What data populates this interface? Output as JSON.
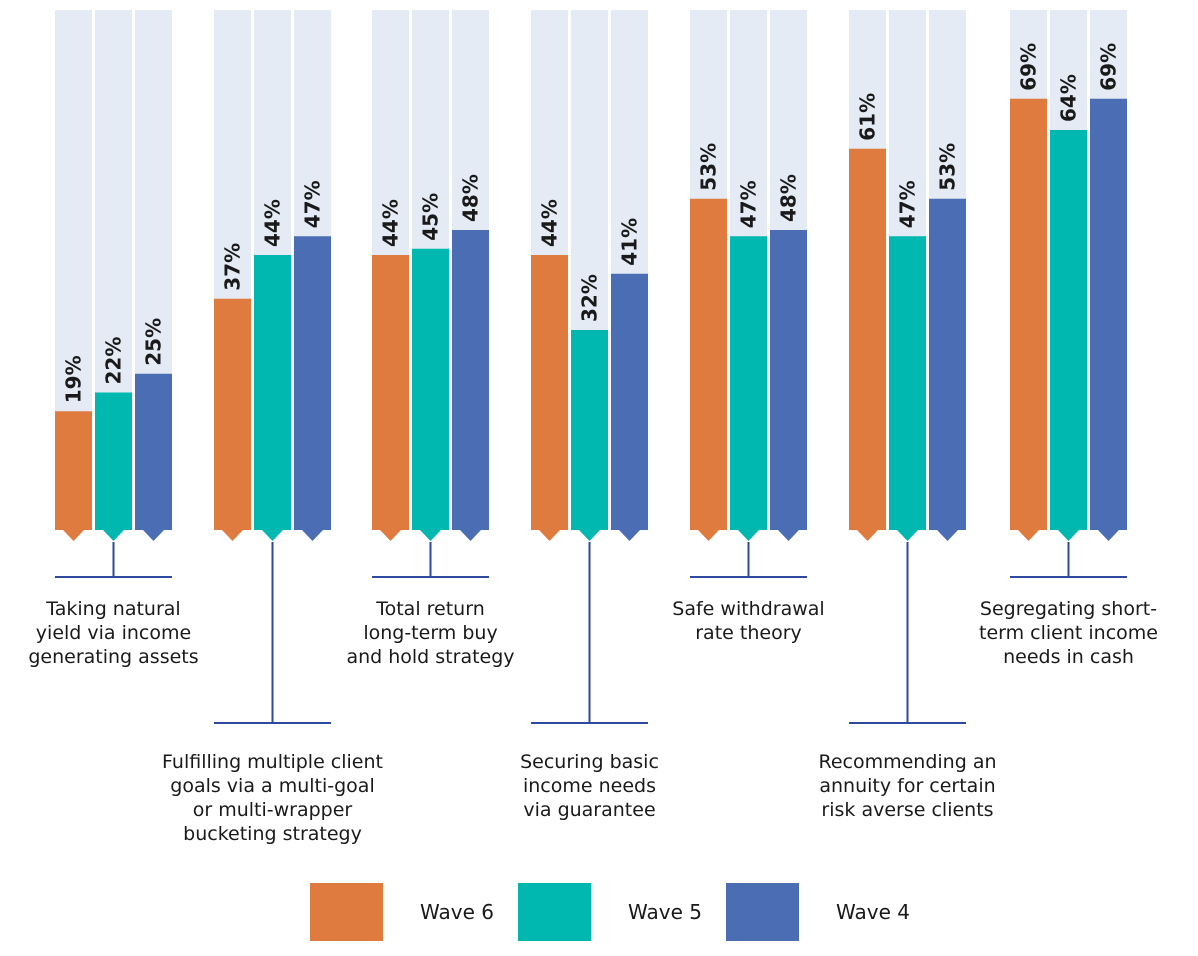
{
  "chart_data": {
    "type": "bar",
    "categories": [
      "Taking natural\nyield via income\ngenerating assets",
      "Fulfilling multiple client\ngoals via a multi-goal\nor multi-wrapper\nbucketing strategy",
      "Total return\nlong-term buy\nand hold strategy",
      "Securing basic\nincome needs\nvia guarantee",
      "Safe withdrawal\nrate theory",
      "Recommending an\nannuity for certain\nrisk averse clients",
      "Segregating short-\nterm client income\nneeds in cash"
    ],
    "series": [
      {
        "name": "Wave 6",
        "color": "#E07B3F",
        "values": [
          19,
          37,
          44,
          44,
          53,
          61,
          69
        ]
      },
      {
        "name": "Wave 5",
        "color": "#00B8B0",
        "values": [
          22,
          44,
          45,
          32,
          47,
          47,
          64
        ]
      },
      {
        "name": "Wave 4",
        "color": "#4A6DB3",
        "values": [
          25,
          47,
          48,
          41,
          48,
          53,
          69
        ]
      }
    ],
    "value_suffix": "%",
    "ylim": [
      0,
      100
    ],
    "background_color": "#E4EBF5",
    "bracket_color": "#2E4A9E",
    "legend_position": "bottom"
  }
}
